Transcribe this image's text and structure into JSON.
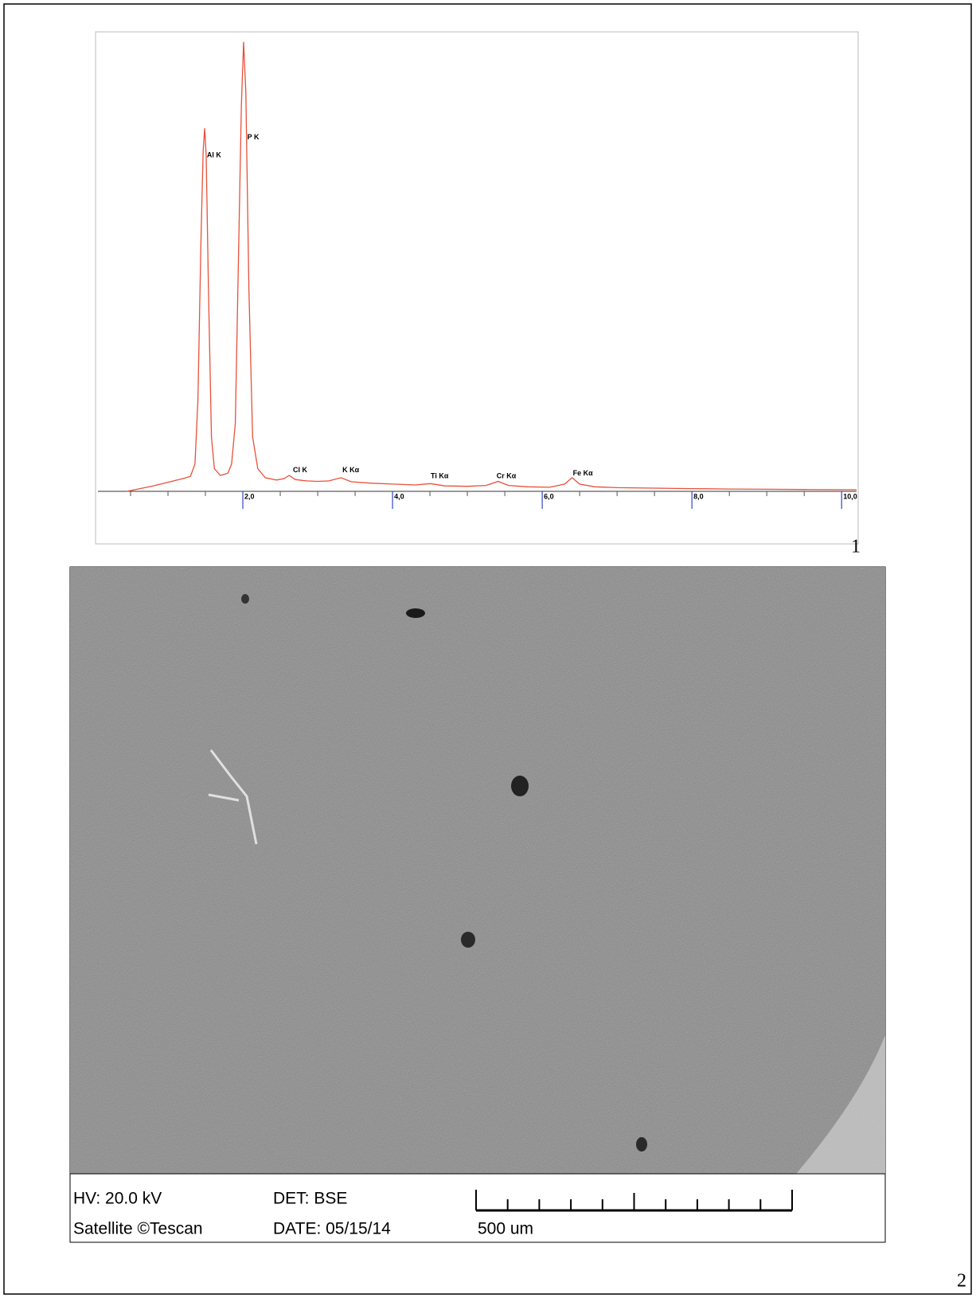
{
  "chart_data": {
    "type": "line",
    "color": "#e8503a",
    "x": [
      0.45,
      0.6,
      0.8,
      1.0,
      1.2,
      1.3,
      1.36,
      1.4,
      1.44,
      1.47,
      1.49,
      1.51,
      1.54,
      1.58,
      1.62,
      1.7,
      1.8,
      1.85,
      1.9,
      1.94,
      1.98,
      2.01,
      2.04,
      2.08,
      2.13,
      2.2,
      2.3,
      2.45,
      2.55,
      2.62,
      2.7,
      2.85,
      3.0,
      3.15,
      3.31,
      3.45,
      3.7,
      4.0,
      4.3,
      4.51,
      4.7,
      5.0,
      5.25,
      5.41,
      5.55,
      5.8,
      6.1,
      6.3,
      6.4,
      6.5,
      6.7,
      7.0,
      7.5,
      8.0,
      8.5,
      9.0,
      9.5,
      10.2
    ],
    "values": [
      0,
      0.5,
      1.2,
      2.0,
      2.8,
      3.3,
      6,
      20,
      55,
      75,
      80,
      74,
      45,
      12,
      5,
      3.5,
      4,
      6,
      15,
      50,
      85,
      99,
      88,
      45,
      12,
      5,
      3,
      2.5,
      2.8,
      3.5,
      2.6,
      2.3,
      2.2,
      2.3,
      3,
      2.1,
      1.8,
      1.6,
      1.4,
      1.7,
      1.2,
      1.1,
      1.3,
      2.2,
      1.3,
      1.0,
      0.9,
      1.6,
      3,
      1.6,
      1.0,
      0.8,
      0.7,
      0.6,
      0.5,
      0.45,
      0.4,
      0.35
    ],
    "xlim": [
      0,
      10.2
    ],
    "ylim": [
      0,
      100
    ],
    "xticks": [
      {
        "value": 2,
        "label": "2,0"
      },
      {
        "value": 4,
        "label": "4,0"
      },
      {
        "value": 6,
        "label": "6,0"
      },
      {
        "value": 8,
        "label": "8,0"
      },
      {
        "value": 10,
        "label": "10,0"
      }
    ],
    "xminor_ticks": [
      0.5,
      1,
      1.5,
      2.5,
      3,
      3.5,
      4.5,
      5,
      5.5,
      6.5,
      7,
      7.5,
      8.5,
      9,
      9.5
    ],
    "annotations": [
      {
        "text": "Al K",
        "x": 1.52,
        "y": 74
      },
      {
        "text": "P K",
        "x": 2.06,
        "y": 78
      },
      {
        "text": "Cl K",
        "x": 2.67,
        "y": 4.6
      },
      {
        "text": "K Kα",
        "x": 3.33,
        "y": 4.6
      },
      {
        "text": "Ti Kα",
        "x": 4.51,
        "y": 3.3
      },
      {
        "text": "Cr Kα",
        "x": 5.39,
        "y": 3.3
      },
      {
        "text": "Fe Kα",
        "x": 6.41,
        "y": 3.9
      }
    ]
  },
  "panel_labels": [
    "1",
    "2"
  ],
  "image_info": {
    "hv": "HV: 20.0 kV",
    "det": "DET: BSE",
    "instrument": "Satellite ©Tescan",
    "date": "DATE: 05/15/14",
    "scale": "500 um"
  }
}
